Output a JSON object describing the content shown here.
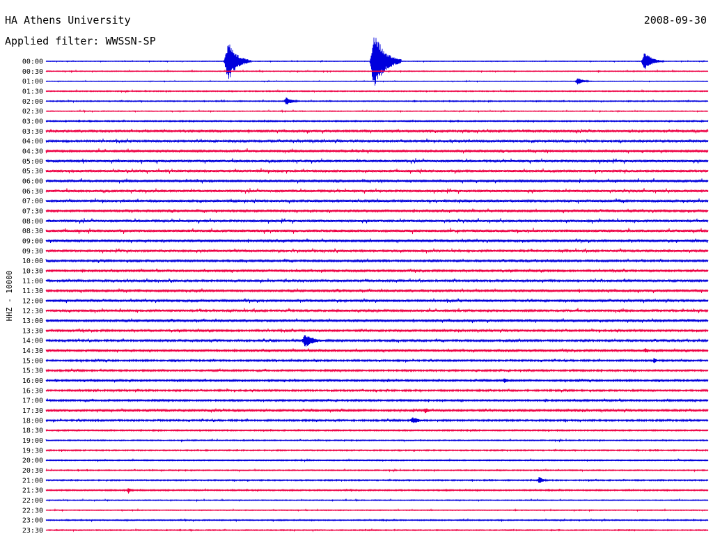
{
  "header": {
    "title": "HA Athens University",
    "date": "2008-09-30",
    "filter": "Applied filter: WWSSN-SP"
  },
  "chart_data": {
    "type": "line",
    "title": "HA Athens University",
    "subtitle": "Applied filter: WWSSN-SP",
    "ylabel": "HHZ - 10000",
    "row_labels": [
      "00:00",
      "00:30",
      "01:00",
      "01:30",
      "02:00",
      "02:30",
      "03:00",
      "03:30",
      "04:00",
      "04:30",
      "05:00",
      "05:30",
      "06:00",
      "06:30",
      "07:00",
      "07:30",
      "08:00",
      "08:30",
      "09:00",
      "09:30",
      "10:00",
      "10:30",
      "11:00",
      "11:30",
      "12:00",
      "12:30",
      "13:00",
      "13:30",
      "14:00",
      "14:30",
      "15:00",
      "15:30",
      "16:00",
      "16:30",
      "17:00",
      "17:30",
      "18:00",
      "18:30",
      "19:00",
      "19:30",
      "20:00",
      "20:30",
      "21:00",
      "21:30",
      "22:00",
      "22:30",
      "23:00",
      "23:30"
    ],
    "colors": [
      "#0000dd",
      "#ee0044"
    ],
    "trace_minutes": 30,
    "noise_level": [
      0.3,
      0.4,
      0.3,
      0.5,
      0.5,
      0.4,
      0.6,
      1.0,
      1.0,
      1.1,
      1.2,
      1.2,
      1.1,
      1.2,
      1.1,
      1.0,
      1.2,
      1.3,
      1.0,
      1.1,
      0.9,
      0.9,
      1.0,
      1.0,
      1.0,
      1.1,
      1.0,
      0.9,
      0.9,
      0.9,
      0.8,
      0.8,
      0.8,
      0.8,
      0.8,
      0.9,
      0.8,
      0.6,
      0.5,
      0.6,
      0.5,
      0.5,
      0.6,
      0.6,
      0.4,
      0.4,
      0.5,
      0.5
    ],
    "events": [
      {
        "row": 0,
        "minute": 8.1,
        "amplitude": 30,
        "duration_min": 1.2
      },
      {
        "row": 0,
        "minute": 14.7,
        "amplitude": 44,
        "duration_min": 1.4
      },
      {
        "row": 0,
        "minute": 27.0,
        "amplitude": 14,
        "duration_min": 1.0
      },
      {
        "row": 2,
        "minute": 24.0,
        "amplitude": 5,
        "duration_min": 0.8
      },
      {
        "row": 4,
        "minute": 10.8,
        "amplitude": 6,
        "duration_min": 0.8
      },
      {
        "row": 28,
        "minute": 11.6,
        "amplitude": 10,
        "duration_min": 1.2
      },
      {
        "row": 29,
        "minute": 27.1,
        "amplitude": 4,
        "duration_min": 0.6
      },
      {
        "row": 30,
        "minute": 27.5,
        "amplitude": 4,
        "duration_min": 0.5
      },
      {
        "row": 32,
        "minute": 20.7,
        "amplitude": 4,
        "duration_min": 0.6
      },
      {
        "row": 35,
        "minute": 17.1,
        "amplitude": 4,
        "duration_min": 0.7
      },
      {
        "row": 36,
        "minute": 16.5,
        "amplitude": 5,
        "duration_min": 1.0
      },
      {
        "row": 42,
        "minute": 22.3,
        "amplitude": 6,
        "duration_min": 0.5
      },
      {
        "row": 43,
        "minute": 3.7,
        "amplitude": 5,
        "duration_min": 0.4
      }
    ]
  }
}
